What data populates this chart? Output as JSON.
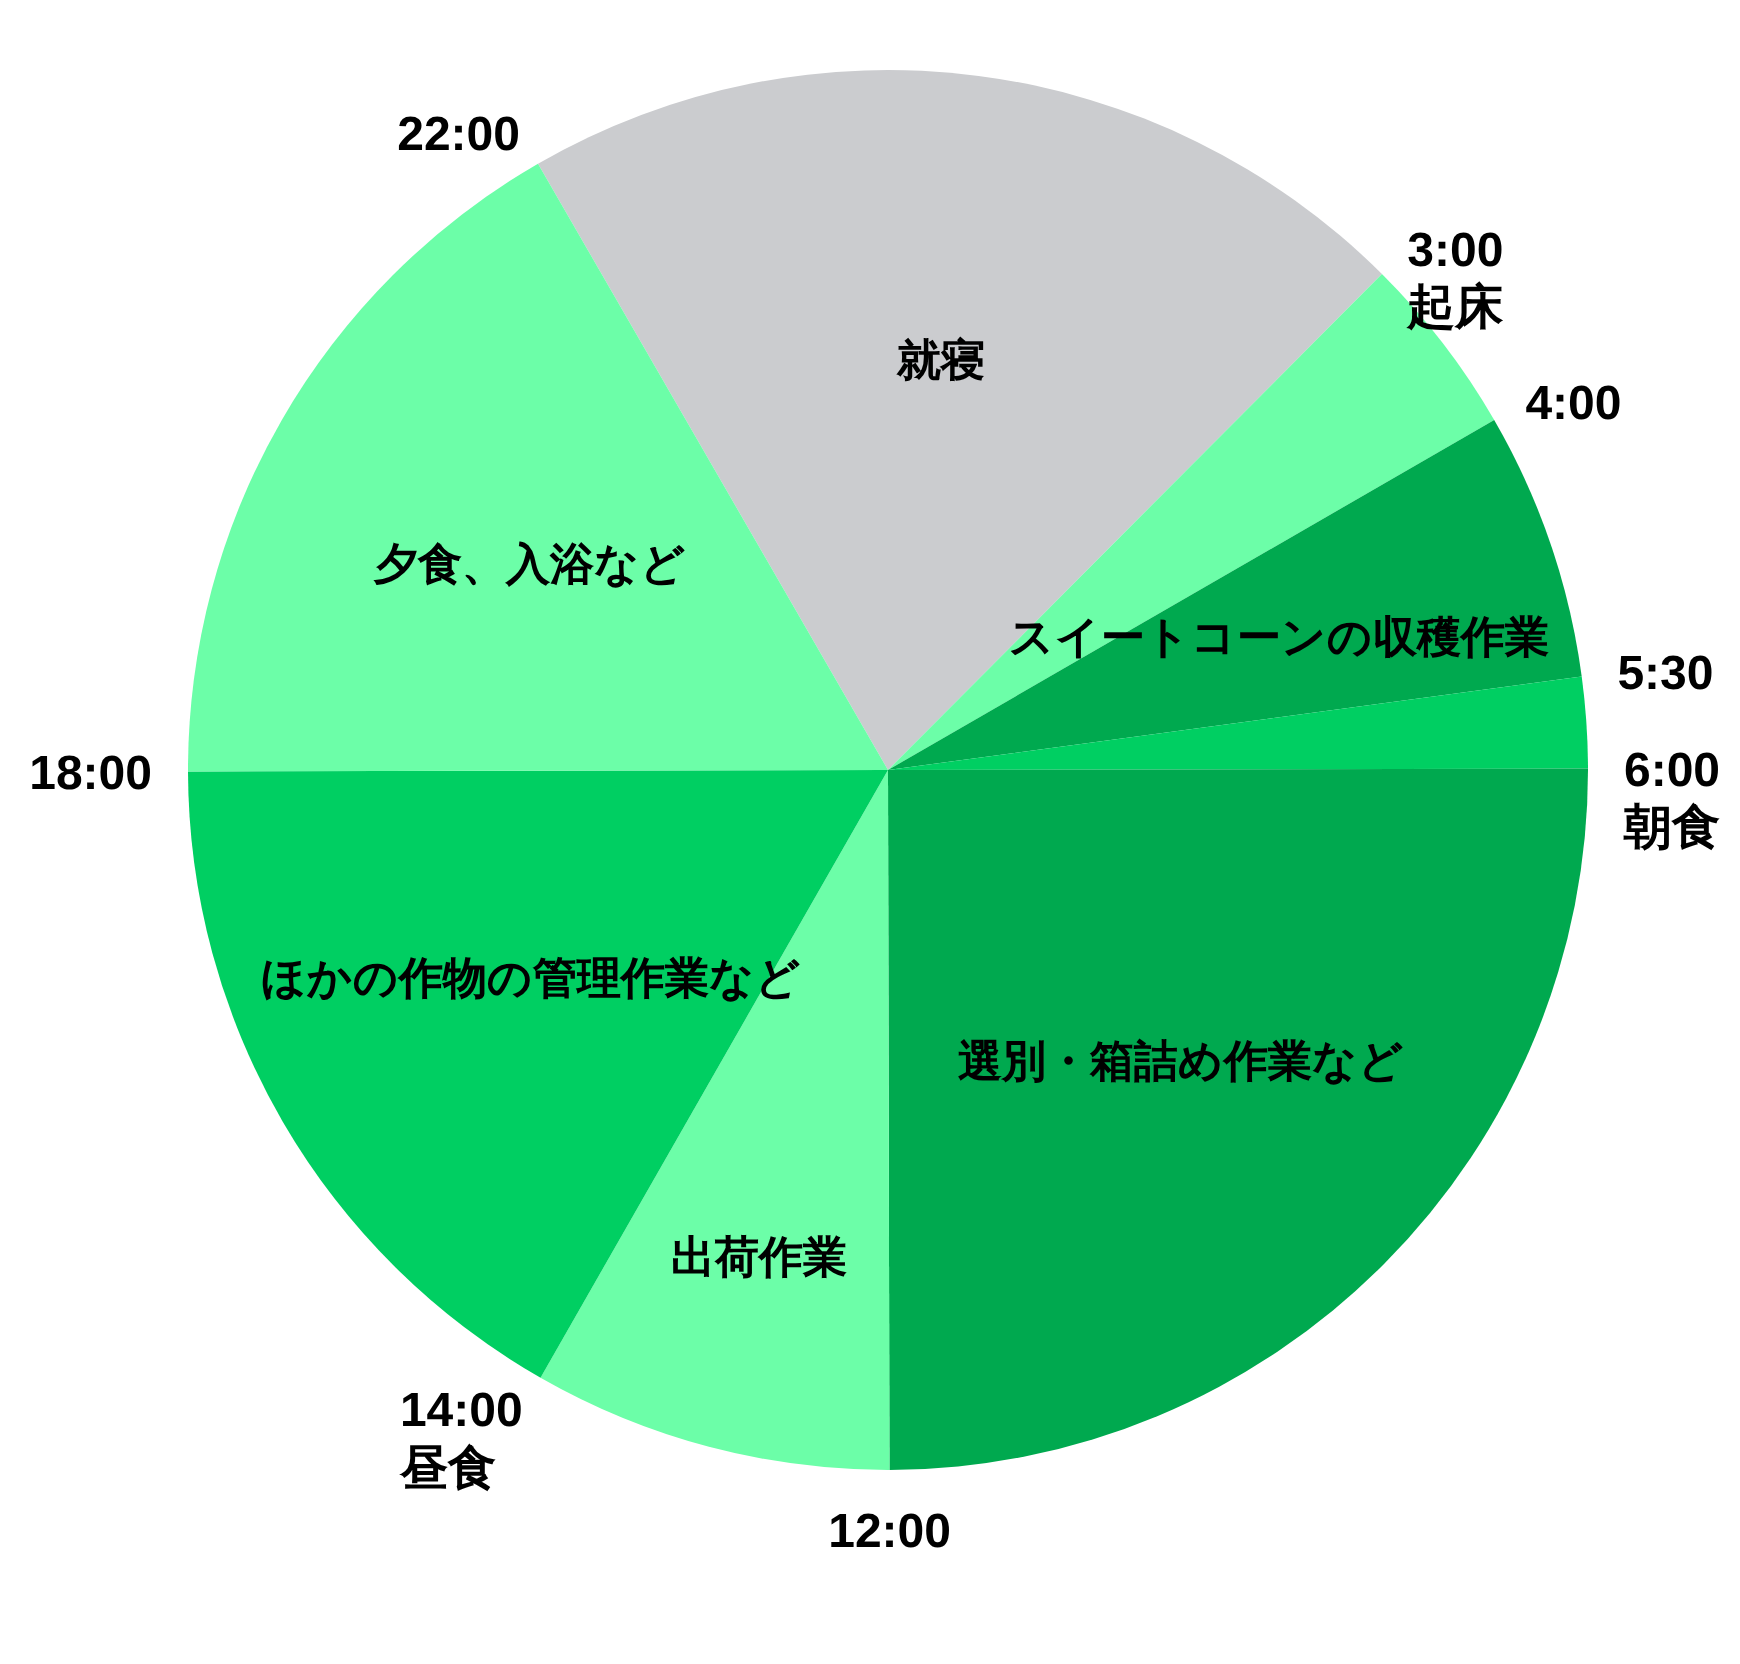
{
  "chart_data": {
    "type": "pie",
    "categories": [
      "就寝",
      null,
      "スイートコーンの収穫作業",
      null,
      "選別・箱詰め作業など",
      "出荷作業",
      "ほかの作物の管理作業など",
      "夕食、入浴など"
    ],
    "values": [
      20.8,
      4.2,
      6.2,
      2.1,
      25,
      8.3,
      16.7,
      16.7
    ],
    "colors": [
      "#cbcccf",
      "#6cfea8",
      "#00a94f",
      "#00cf62",
      "#00a94f",
      "#6cfea8",
      "#00cf62",
      "#6cfea8"
    ],
    "annotations": [
      "22:00",
      "3:00\n起床",
      "4:00",
      "5:30",
      "6:00\n朝食",
      "12:00",
      "14:00\n昼食",
      "18:00"
    ]
  }
}
